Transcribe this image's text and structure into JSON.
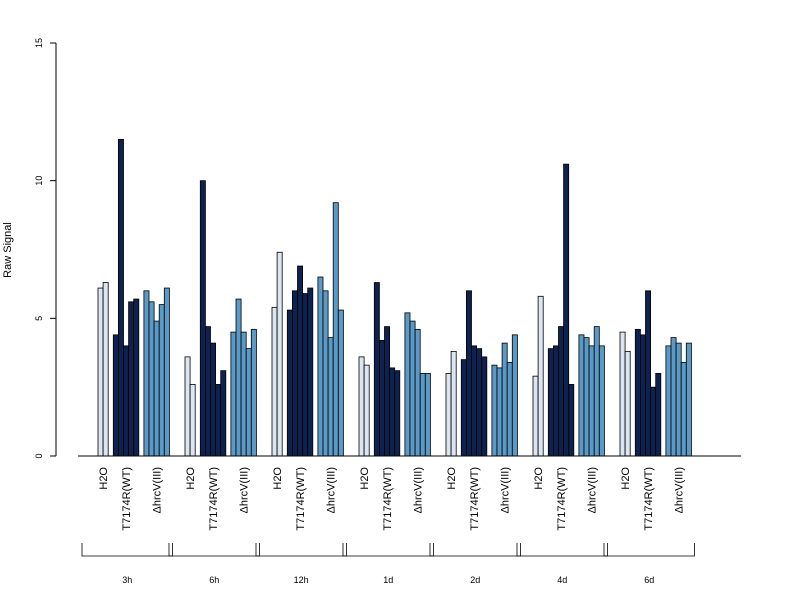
{
  "chart_data": {
    "type": "bar",
    "title": "",
    "xlabel": "",
    "ylabel": "Raw Signal",
    "ylim": [
      0,
      15
    ],
    "yticks": [
      0,
      5,
      10,
      15
    ],
    "grid": false,
    "legend": "none",
    "groups": [
      {
        "label": "3h",
        "clusters": [
          {
            "label": "H2O",
            "color": "#dce6f2",
            "values": [
              6.1,
              6.3
            ]
          },
          {
            "label": "T7174R(WT)",
            "color": "#0e2250",
            "values": [
              4.4,
              11.5,
              4.0,
              5.6,
              5.7
            ]
          },
          {
            "label": "ΔhrcV(III)",
            "color": "#5b9ac6",
            "values": [
              6.0,
              5.6,
              4.9,
              5.5,
              6.1
            ]
          }
        ]
      },
      {
        "label": "6h",
        "clusters": [
          {
            "label": "H2O",
            "color": "#dce6f2",
            "values": [
              3.6,
              2.6
            ]
          },
          {
            "label": "T7174R(WT)",
            "color": "#0e2250",
            "values": [
              10.0,
              4.7,
              4.1,
              2.6,
              3.1
            ]
          },
          {
            "label": "ΔhrcV(III)",
            "color": "#5b9ac6",
            "values": [
              4.5,
              5.7,
              4.5,
              3.9,
              4.6
            ]
          }
        ]
      },
      {
        "label": "12h",
        "clusters": [
          {
            "label": "H2O",
            "color": "#dce6f2",
            "values": [
              5.4,
              7.4
            ]
          },
          {
            "label": "T7174R(WT)",
            "color": "#0e2250",
            "values": [
              5.3,
              6.0,
              6.9,
              5.9,
              6.1
            ]
          },
          {
            "label": "ΔhrcV(III)",
            "color": "#5b9ac6",
            "values": [
              6.5,
              6.0,
              4.3,
              9.2,
              5.3
            ]
          }
        ]
      },
      {
        "label": "1d",
        "clusters": [
          {
            "label": "H2O",
            "color": "#dce6f2",
            "values": [
              3.6,
              3.3
            ]
          },
          {
            "label": "T7174R(WT)",
            "color": "#0e2250",
            "values": [
              6.3,
              4.2,
              4.7,
              3.2,
              3.1
            ]
          },
          {
            "label": "ΔhrcV(III)",
            "color": "#5b9ac6",
            "values": [
              5.2,
              4.9,
              4.6,
              3.0,
              3.0
            ]
          }
        ]
      },
      {
        "label": "2d",
        "clusters": [
          {
            "label": "H2O",
            "color": "#dce6f2",
            "values": [
              3.0,
              3.8
            ]
          },
          {
            "label": "T7174R(WT)",
            "color": "#0e2250",
            "values": [
              3.5,
              6.0,
              4.0,
              3.9,
              3.6
            ]
          },
          {
            "label": "ΔhrcV(III)",
            "color": "#5b9ac6",
            "values": [
              3.3,
              3.2,
              4.1,
              3.4,
              4.4
            ]
          }
        ]
      },
      {
        "label": "4d",
        "clusters": [
          {
            "label": "H2O",
            "color": "#dce6f2",
            "values": [
              2.9,
              5.8
            ]
          },
          {
            "label": "T7174R(WT)",
            "color": "#0e2250",
            "values": [
              3.9,
              4.0,
              4.7,
              10.6,
              2.6
            ]
          },
          {
            "label": "ΔhrcV(III)",
            "color": "#5b9ac6",
            "values": [
              4.4,
              4.3,
              4.0,
              4.7,
              4.0
            ]
          }
        ]
      },
      {
        "label": "6d",
        "clusters": [
          {
            "label": "H2O",
            "color": "#dce6f2",
            "values": [
              4.5,
              3.8
            ]
          },
          {
            "label": "T7174R(WT)",
            "color": "#0e2250",
            "values": [
              4.6,
              4.4,
              6.0,
              2.5,
              3.0
            ]
          },
          {
            "label": "ΔhrcV(III)",
            "color": "#5b9ac6",
            "values": [
              4.0,
              4.3,
              4.1,
              3.4,
              4.1
            ]
          }
        ]
      }
    ]
  }
}
